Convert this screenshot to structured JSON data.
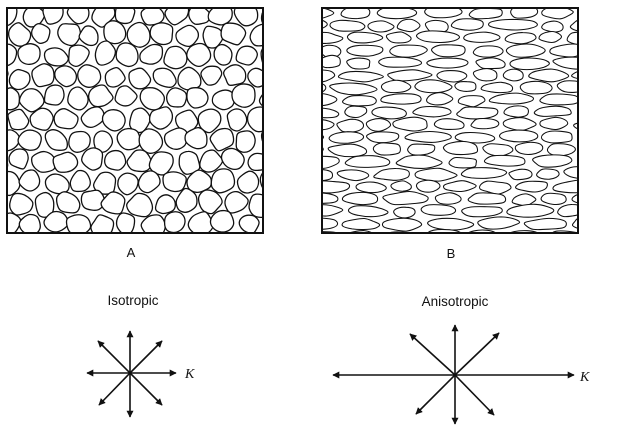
{
  "panels": {
    "left": {
      "letter": "A",
      "title": "Isotropic",
      "arrow_label": "K",
      "texture": "rounded-grains"
    },
    "right": {
      "letter": "B",
      "title": "Anisotropic",
      "arrow_label": "K",
      "texture": "elongated-grains"
    }
  },
  "colors": {
    "ink": "#111111",
    "background": "#ffffff"
  }
}
